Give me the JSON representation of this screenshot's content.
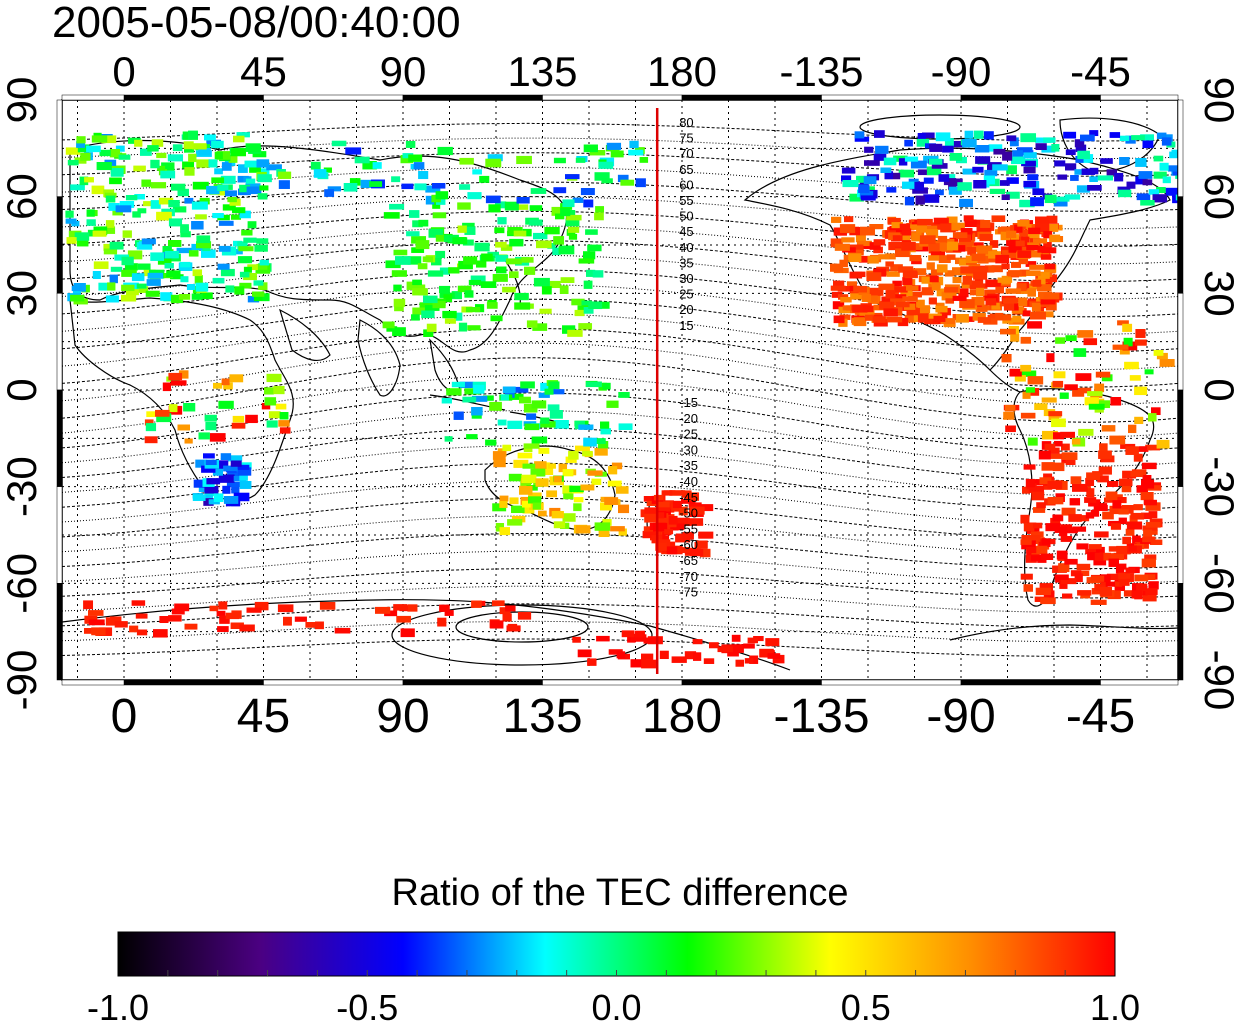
{
  "title": "2005-05-08/00:40:00",
  "colorbar": {
    "title": "Ratio of the TEC difference",
    "ticks": [
      "-1.0",
      "-0.5",
      "0.0",
      "0.5",
      "1.0"
    ],
    "range": [
      -1.0,
      1.0
    ],
    "stops": [
      "#000000",
      "#4b0082",
      "#0000ff",
      "#00ffff",
      "#00ff00",
      "#ffff00",
      "#ff8c00",
      "#ff0000"
    ]
  },
  "map": {
    "lon_ticks": [
      "0",
      "45",
      "90",
      "135",
      "180",
      "-135",
      "-90",
      "-45"
    ],
    "lat_ticks": [
      "90",
      "60",
      "30",
      "0",
      "-30",
      "-60",
      "-90"
    ],
    "meridian_marker_lon": 172,
    "marker_color": "#dd0000",
    "contour_labels_north": [
      "80",
      "75",
      "70",
      "65",
      "60",
      "55",
      "50",
      "45",
      "40",
      "35",
      "30",
      "25",
      "20",
      "15"
    ],
    "contour_labels_south": [
      "-15",
      "-20",
      "-25",
      "-30",
      "-35",
      "-40",
      "-45",
      "-50",
      "-55",
      "-60",
      "-65",
      "-70",
      "-75"
    ]
  }
}
